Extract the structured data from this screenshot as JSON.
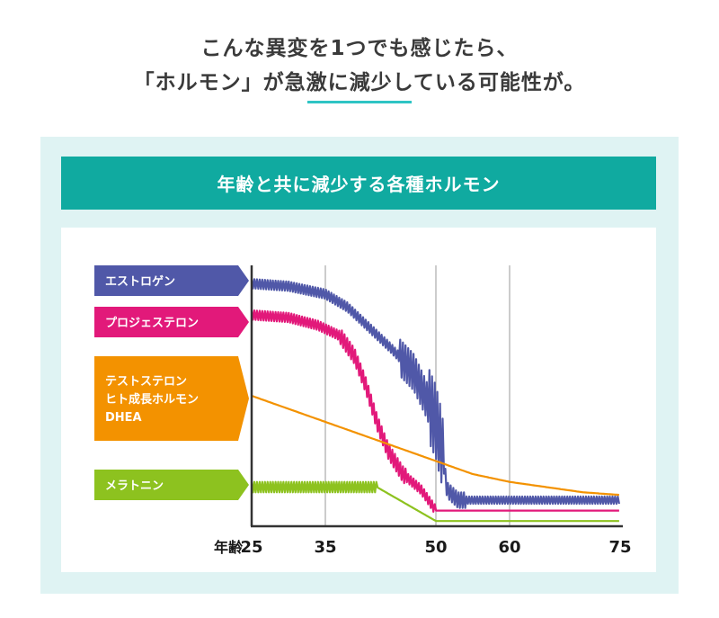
{
  "header": {
    "line1": "こんな異変を1つでも感じたら、",
    "line2": "「ホルモン」が急激に減少している可能性が。"
  },
  "banner": {
    "title": "年齢と共に減少する各種ホルモン"
  },
  "colors": {
    "accent": "#2ec4c4",
    "banner": "#10aaa0",
    "panel": "#dff3f3",
    "estrogen": "#5058a8",
    "progesterone": "#e2197a",
    "testosterone": "#f39200",
    "melatonin": "#8dc21f",
    "axis": "#333333",
    "gridline": "#aaaaaa"
  },
  "chart_data": {
    "type": "line",
    "xlabel": "年齢",
    "x_ticks": [
      "25",
      "35",
      "50",
      "60",
      "75"
    ],
    "x_tick_values": [
      25,
      35,
      50,
      60,
      75
    ],
    "vertical_gridlines_at": [
      35,
      50,
      60
    ],
    "xlim": [
      25,
      75
    ],
    "y_axis_labels": false,
    "series": [
      {
        "key": "estrogen",
        "labels": [
          "エストロゲン"
        ],
        "color": "#5058a8",
        "pattern": "oscillating",
        "points": [
          [
            25,
            0.93
          ],
          [
            30,
            0.92
          ],
          [
            35,
            0.89
          ],
          [
            38,
            0.84
          ],
          [
            41,
            0.76
          ],
          [
            44,
            0.68
          ],
          [
            47,
            0.59
          ],
          [
            48.5,
            0.5
          ],
          [
            50,
            0.4
          ],
          [
            50.8,
            0.3
          ],
          [
            51.5,
            0.14
          ],
          [
            53,
            0.1
          ],
          [
            60,
            0.1
          ],
          [
            75,
            0.1
          ]
        ]
      },
      {
        "key": "progesterone",
        "labels": [
          "プロジェステロン"
        ],
        "color": "#e2197a",
        "pattern": "oscillating",
        "points": [
          [
            25,
            0.81
          ],
          [
            30,
            0.8
          ],
          [
            34,
            0.77
          ],
          [
            37,
            0.73
          ],
          [
            39,
            0.65
          ],
          [
            40.5,
            0.54
          ],
          [
            42,
            0.4
          ],
          [
            43.5,
            0.29
          ],
          [
            45.5,
            0.2
          ],
          [
            48,
            0.14
          ],
          [
            50,
            0.06
          ],
          [
            75,
            0.06
          ]
        ]
      },
      {
        "key": "hgh",
        "labels": [
          "テストステロン",
          "ヒト成長ホルモン",
          "DHEA"
        ],
        "color": "#f39200",
        "pattern": "smooth",
        "points": [
          [
            25,
            0.5
          ],
          [
            30,
            0.45
          ],
          [
            35,
            0.4
          ],
          [
            40,
            0.35
          ],
          [
            45,
            0.3
          ],
          [
            50,
            0.25
          ],
          [
            55,
            0.2
          ],
          [
            60,
            0.17
          ],
          [
            65,
            0.15
          ],
          [
            70,
            0.13
          ],
          [
            75,
            0.12
          ]
        ]
      },
      {
        "key": "melatonin",
        "labels": [
          "メラトニン"
        ],
        "color": "#8dc21f",
        "pattern": "oscillating-then-smooth",
        "points": [
          [
            25,
            0.15
          ],
          [
            42,
            0.15
          ],
          [
            50,
            0.02
          ],
          [
            75,
            0.02
          ]
        ]
      }
    ]
  }
}
